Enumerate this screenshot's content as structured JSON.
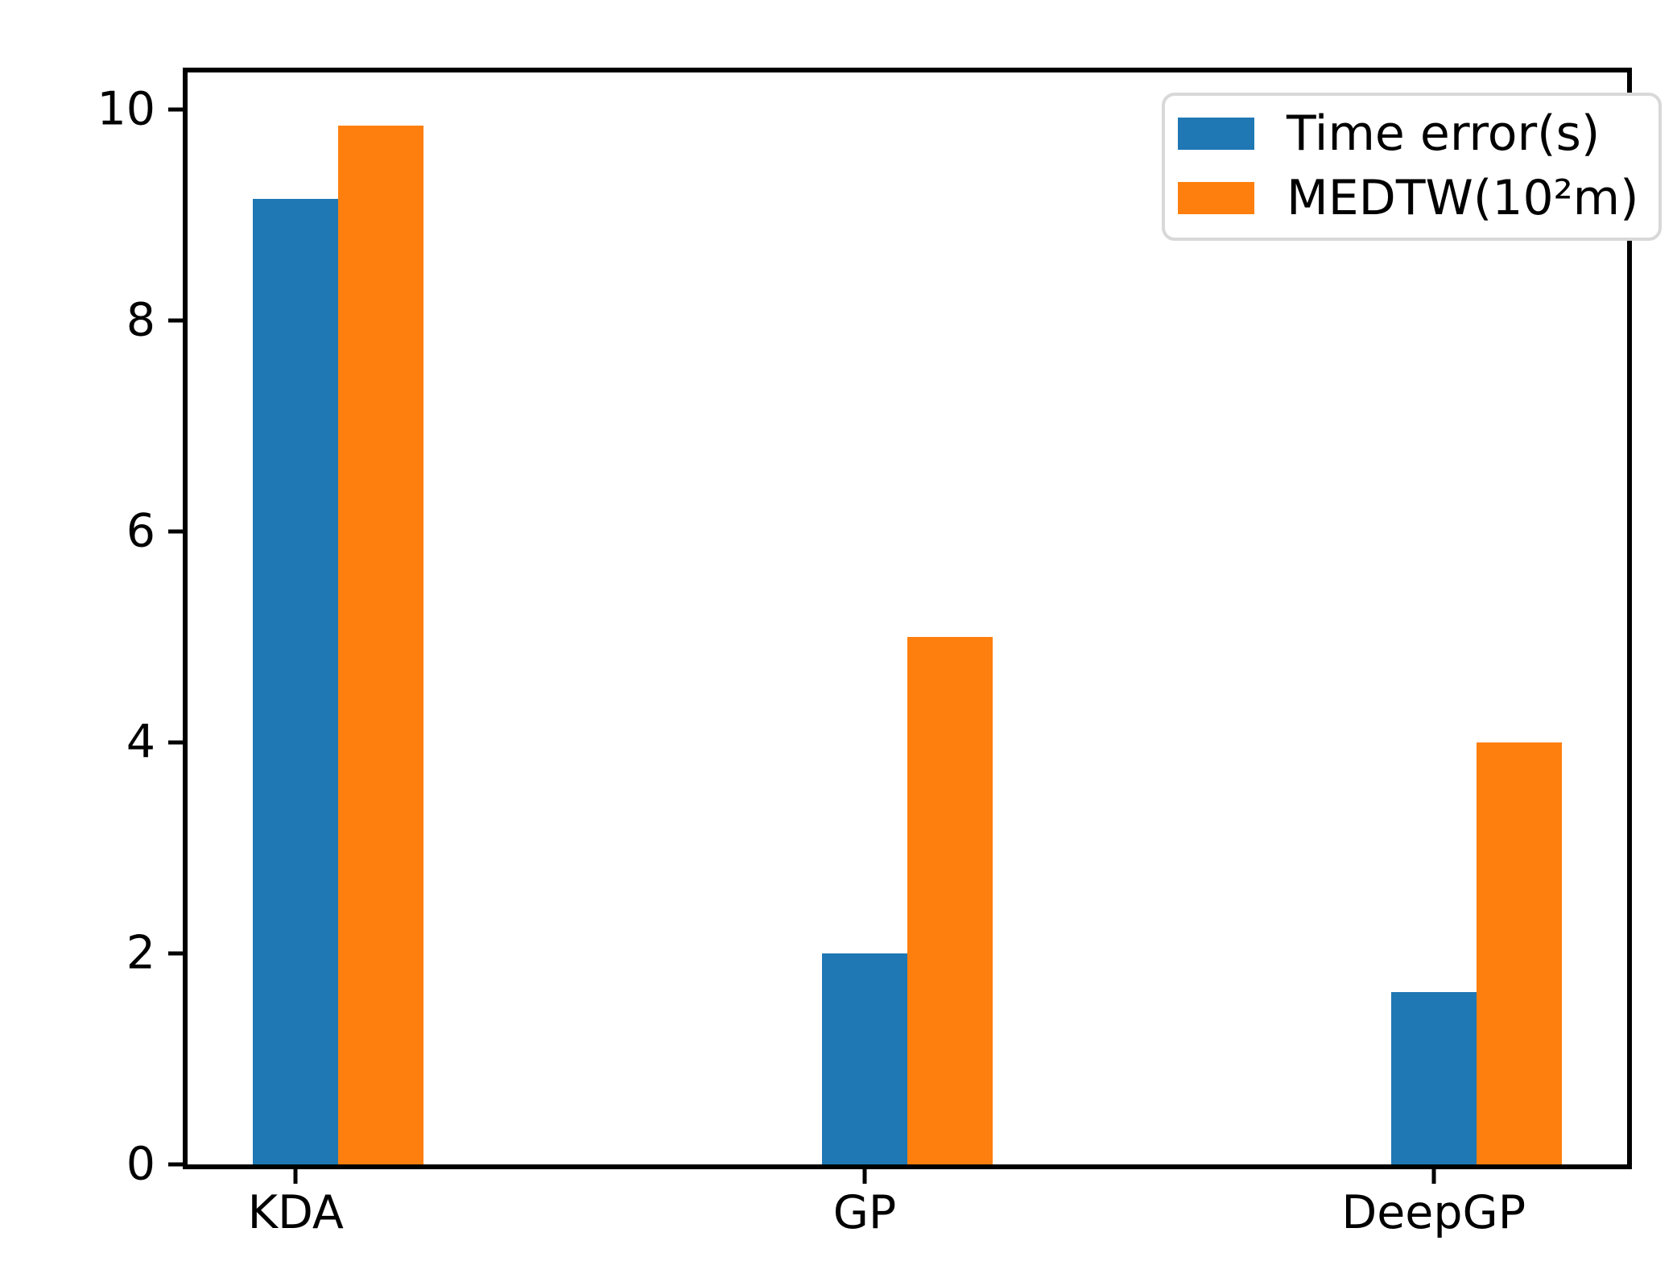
{
  "figure": {
    "background": "#ffffff",
    "spine_color": "#000000",
    "tick_color": "#000000",
    "text_color": "#000000",
    "legend_border_color": "#d8d8d8",
    "legend_background": "#ffffff"
  },
  "chart_data": {
    "type": "bar",
    "title": "",
    "xlabel": "",
    "ylabel": "",
    "categories": [
      "KDA",
      "GP",
      "DeepGP"
    ],
    "x_positions": [
      0,
      1,
      2
    ],
    "series": [
      {
        "name": "Time error(s)",
        "color": "#1f77b4",
        "values": [
          9.15,
          2.0,
          1.63
        ]
      },
      {
        "name": "MEDTW(10²m)",
        "color": "#ff7f0e",
        "values": [
          9.85,
          5.0,
          4.0
        ]
      }
    ],
    "bar_width": 0.15,
    "xlim": [
      -0.19,
      2.34
    ],
    "ylim": [
      0,
      10.35
    ],
    "yticks": [
      0,
      2,
      4,
      6,
      8,
      10
    ],
    "legend_position": "upper right",
    "grid": false
  }
}
